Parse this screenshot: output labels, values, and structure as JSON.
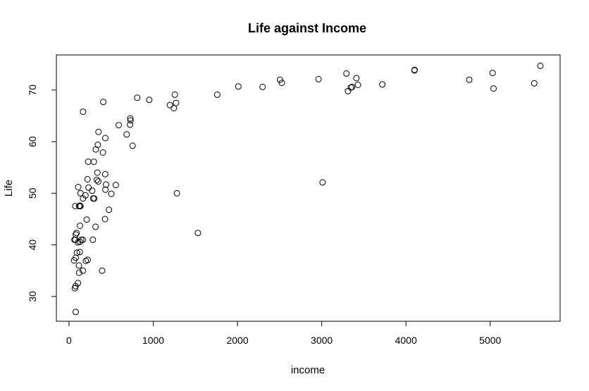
{
  "chart_data": {
    "type": "scatter",
    "title": "Life against Income",
    "xlabel": "income",
    "ylabel": "Life",
    "xlim": [
      -150,
      5830
    ],
    "ylim": [
      25.2,
      76.8
    ],
    "xticks": [
      0,
      1000,
      2000,
      3000,
      4000,
      5000
    ],
    "yticks": [
      30,
      40,
      50,
      60,
      70
    ],
    "grid": false,
    "points": [
      [
        5596,
        74.7
      ],
      [
        4102,
        73.9
      ],
      [
        4101,
        73.8
      ],
      [
        3293,
        73.2
      ],
      [
        5029,
        73.3
      ],
      [
        3411,
        72.3
      ],
      [
        2505,
        72.0
      ],
      [
        2962,
        72.1
      ],
      [
        4751,
        72.0
      ],
      [
        5523,
        71.3
      ],
      [
        3720,
        71.1
      ],
      [
        3430,
        71.0
      ],
      [
        2526,
        71.4
      ],
      [
        2010,
        70.7
      ],
      [
        2298,
        70.6
      ],
      [
        3346,
        70.5
      ],
      [
        3360,
        70.6
      ],
      [
        3312,
        69.8
      ],
      [
        5040,
        70.3
      ],
      [
        1760,
        69.1
      ],
      [
        1257,
        69.1
      ],
      [
        810,
        68.5
      ],
      [
        952,
        68.1
      ],
      [
        407,
        67.7
      ],
      [
        1271,
        67.5
      ],
      [
        1198,
        67.1
      ],
      [
        1245,
        66.5
      ],
      [
        167,
        65.8
      ],
      [
        727,
        64.5
      ],
      [
        731,
        64.1
      ],
      [
        725,
        63.3
      ],
      [
        590,
        63.2
      ],
      [
        685,
        61.4
      ],
      [
        350,
        61.9
      ],
      [
        431,
        60.7
      ],
      [
        755,
        59.2
      ],
      [
        343,
        59.4
      ],
      [
        318,
        58.5
      ],
      [
        403,
        57.9
      ],
      [
        228,
        56.1
      ],
      [
        295,
        56.1
      ],
      [
        430,
        53.7
      ],
      [
        337,
        54.0
      ],
      [
        220,
        52.7
      ],
      [
        330,
        52.6
      ],
      [
        348,
        52.3
      ],
      [
        3011,
        52.1
      ],
      [
        555,
        51.6
      ],
      [
        440,
        51.7
      ],
      [
        110,
        51.2
      ],
      [
        232,
        51.1
      ],
      [
        432,
        50.7
      ],
      [
        275,
        50.5
      ],
      [
        1281,
        50.0
      ],
      [
        137,
        50.0
      ],
      [
        502,
        49.9
      ],
      [
        195,
        49.6
      ],
      [
        167,
        49.0
      ],
      [
        287,
        49.0
      ],
      [
        300,
        49.0
      ],
      [
        75,
        47.5
      ],
      [
        120,
        47.5
      ],
      [
        135,
        47.5
      ],
      [
        130,
        47.6
      ],
      [
        475,
        46.8
      ],
      [
        210,
        44.9
      ],
      [
        428,
        45.0
      ],
      [
        130,
        43.7
      ],
      [
        315,
        43.5
      ],
      [
        1530,
        42.3
      ],
      [
        90,
        42.3
      ],
      [
        80,
        42.0
      ],
      [
        65,
        41.0
      ],
      [
        75,
        41.0
      ],
      [
        145,
        41.0
      ],
      [
        165,
        41.0
      ],
      [
        283,
        41.0
      ],
      [
        105,
        40.5
      ],
      [
        130,
        40.6
      ],
      [
        95,
        38.5
      ],
      [
        128,
        38.6
      ],
      [
        80,
        37.5
      ],
      [
        60,
        37.0
      ],
      [
        200,
        36.9
      ],
      [
        222,
        37.1
      ],
      [
        118,
        36.0
      ],
      [
        393,
        35.0
      ],
      [
        165,
        35.0
      ],
      [
        120,
        34.6
      ],
      [
        106,
        32.6
      ],
      [
        78,
        32.0
      ],
      [
        70,
        31.6
      ],
      [
        80,
        27.0
      ]
    ]
  }
}
